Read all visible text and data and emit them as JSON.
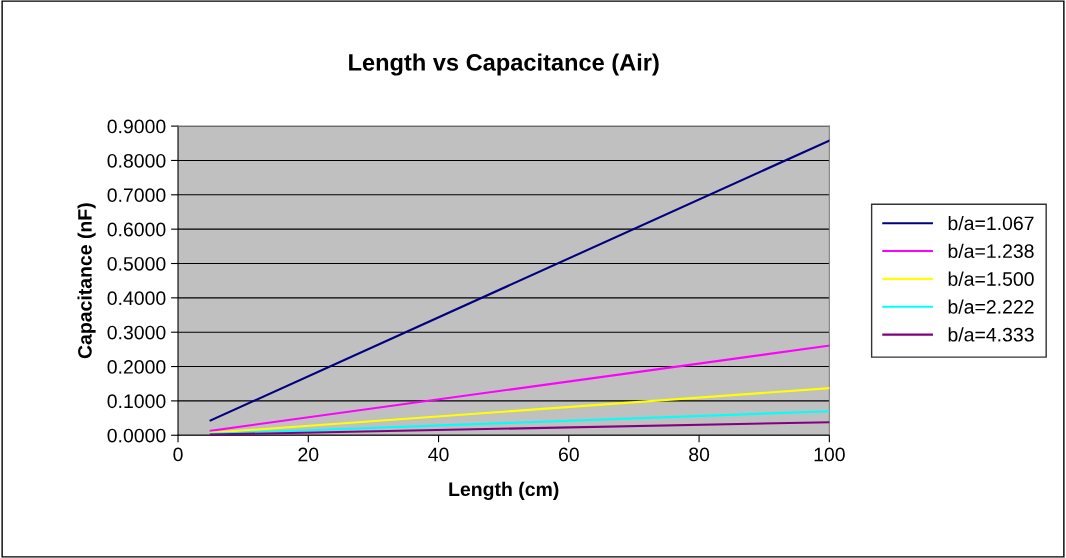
{
  "chart_data": {
    "type": "line",
    "title": "Length vs Capacitance (Air)",
    "xlabel": "Length (cm)",
    "ylabel": "Capacitance (nF)",
    "xlim": [
      0,
      100
    ],
    "xticks": [
      0,
      20,
      40,
      60,
      80,
      100
    ],
    "ylim": [
      0,
      0.9
    ],
    "yticks": [
      {
        "value": 0,
        "label": "0.0000"
      },
      {
        "value": 0.1,
        "label": "0.1000"
      },
      {
        "value": 0.2,
        "label": "0.2000"
      },
      {
        "value": 0.3,
        "label": "0.3000"
      },
      {
        "value": 0.4,
        "label": "0.4000"
      },
      {
        "value": 0.5,
        "label": "0.5000"
      },
      {
        "value": 0.6,
        "label": "0.6000"
      },
      {
        "value": 0.7,
        "label": "0.7000"
      },
      {
        "value": 0.8,
        "label": "0.8000"
      },
      {
        "value": 0.9,
        "label": "0.9000"
      }
    ],
    "grid": "y",
    "legend": "right",
    "marker": "none",
    "line_style": "solid",
    "x": [
      5,
      100
    ],
    "series": [
      {
        "name": "b/a=1.067",
        "color": "#000080",
        "values": [
          0.043,
          0.858
        ]
      },
      {
        "name": "b/a=1.238",
        "color": "#ff00ff",
        "values": [
          0.013,
          0.261
        ]
      },
      {
        "name": "b/a=1.500",
        "color": "#ffff00",
        "values": [
          0.007,
          0.137
        ]
      },
      {
        "name": "b/a=2.222",
        "color": "#00ffff",
        "values": [
          0.004,
          0.07
        ]
      },
      {
        "name": "b/a=4.333",
        "color": "#800080",
        "values": [
          0.002,
          0.038
        ]
      }
    ]
  }
}
